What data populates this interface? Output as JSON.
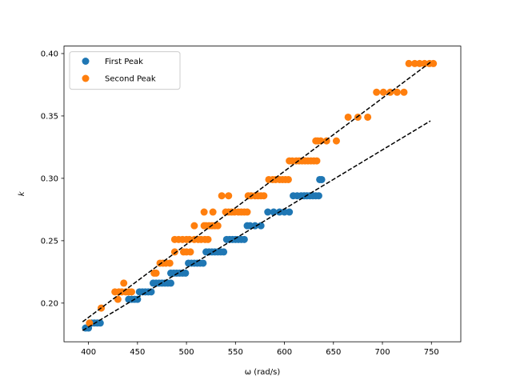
{
  "chart_data": {
    "type": "scatter",
    "title": "",
    "xlabel": "ω (rad/s)",
    "ylabel": "k",
    "xlim": [
      375,
      780
    ],
    "ylim": [
      0.169,
      0.406
    ],
    "xticks": [
      400,
      450,
      500,
      550,
      600,
      650,
      700,
      750
    ],
    "xtick_labels": [
      "400",
      "450",
      "500",
      "550",
      "600",
      "650",
      "700",
      "750"
    ],
    "yticks": [
      0.2,
      0.25,
      0.3,
      0.35,
      0.4
    ],
    "ytick_labels": [
      "0.20",
      "0.25",
      "0.30",
      "0.35",
      "0.40"
    ],
    "grid": false,
    "legend_position": "top-left",
    "series": [
      {
        "name": "First Peak",
        "color": "#1f77b4",
        "points": [
          [
            397,
            0.18
          ],
          [
            400,
            0.18
          ],
          [
            403,
            0.184
          ],
          [
            406,
            0.184
          ],
          [
            409,
            0.184
          ],
          [
            412,
            0.184
          ],
          [
            441,
            0.203
          ],
          [
            444,
            0.203
          ],
          [
            447,
            0.203
          ],
          [
            450,
            0.203
          ],
          [
            452,
            0.209
          ],
          [
            455,
            0.209
          ],
          [
            458,
            0.209
          ],
          [
            461,
            0.209
          ],
          [
            464,
            0.209
          ],
          [
            466,
            0.216
          ],
          [
            469,
            0.216
          ],
          [
            472,
            0.216
          ],
          [
            475,
            0.216
          ],
          [
            478,
            0.216
          ],
          [
            481,
            0.216
          ],
          [
            484,
            0.216
          ],
          [
            484,
            0.224
          ],
          [
            487,
            0.224
          ],
          [
            490,
            0.224
          ],
          [
            493,
            0.224
          ],
          [
            496,
            0.224
          ],
          [
            499,
            0.224
          ],
          [
            502,
            0.232
          ],
          [
            505,
            0.232
          ],
          [
            508,
            0.232
          ],
          [
            511,
            0.232
          ],
          [
            514,
            0.232
          ],
          [
            517,
            0.232
          ],
          [
            520,
            0.241
          ],
          [
            523,
            0.241
          ],
          [
            526,
            0.241
          ],
          [
            529,
            0.241
          ],
          [
            532,
            0.241
          ],
          [
            535,
            0.241
          ],
          [
            538,
            0.241
          ],
          [
            541,
            0.251
          ],
          [
            544,
            0.251
          ],
          [
            547,
            0.251
          ],
          [
            550,
            0.251
          ],
          [
            553,
            0.251
          ],
          [
            556,
            0.251
          ],
          [
            559,
            0.251
          ],
          [
            562,
            0.262
          ],
          [
            565,
            0.262
          ],
          [
            570,
            0.262
          ],
          [
            576,
            0.262
          ],
          [
            583,
            0.273
          ],
          [
            589,
            0.273
          ],
          [
            595,
            0.273
          ],
          [
            600,
            0.273
          ],
          [
            605,
            0.273
          ],
          [
            609,
            0.286
          ],
          [
            613,
            0.286
          ],
          [
            617,
            0.286
          ],
          [
            620,
            0.286
          ],
          [
            623,
            0.286
          ],
          [
            626,
            0.286
          ],
          [
            629,
            0.286
          ],
          [
            632,
            0.286
          ],
          [
            635,
            0.286
          ],
          [
            636,
            0.299
          ],
          [
            638,
            0.299
          ]
        ]
      },
      {
        "name": "Second Peak",
        "color": "#ff7f0e",
        "points": [
          [
            401,
            0.184
          ],
          [
            413,
            0.196
          ],
          [
            427,
            0.209
          ],
          [
            430,
            0.203
          ],
          [
            431,
            0.209
          ],
          [
            434,
            0.209
          ],
          [
            436,
            0.216
          ],
          [
            438,
            0.209
          ],
          [
            441,
            0.209
          ],
          [
            444,
            0.209
          ],
          [
            467,
            0.224
          ],
          [
            469,
            0.224
          ],
          [
            473,
            0.232
          ],
          [
            476,
            0.232
          ],
          [
            479,
            0.232
          ],
          [
            483,
            0.232
          ],
          [
            488,
            0.241
          ],
          [
            488,
            0.251
          ],
          [
            492,
            0.251
          ],
          [
            496,
            0.251
          ],
          [
            500,
            0.251
          ],
          [
            503,
            0.251
          ],
          [
            497,
            0.241
          ],
          [
            500,
            0.241
          ],
          [
            504,
            0.241
          ],
          [
            508,
            0.262
          ],
          [
            508,
            0.251
          ],
          [
            512,
            0.251
          ],
          [
            515,
            0.251
          ],
          [
            519,
            0.251
          ],
          [
            522,
            0.251
          ],
          [
            518,
            0.262
          ],
          [
            520,
            0.262
          ],
          [
            523,
            0.262
          ],
          [
            526,
            0.262
          ],
          [
            529,
            0.262
          ],
          [
            532,
            0.262
          ],
          [
            518,
            0.273
          ],
          [
            527,
            0.273
          ],
          [
            536,
            0.286
          ],
          [
            543,
            0.286
          ],
          [
            540,
            0.273
          ],
          [
            543,
            0.273
          ],
          [
            546,
            0.273
          ],
          [
            549,
            0.273
          ],
          [
            553,
            0.273
          ],
          [
            556,
            0.273
          ],
          [
            559,
            0.273
          ],
          [
            562,
            0.273
          ],
          [
            563,
            0.286
          ],
          [
            566,
            0.286
          ],
          [
            570,
            0.286
          ],
          [
            573,
            0.286
          ],
          [
            576,
            0.286
          ],
          [
            579,
            0.286
          ],
          [
            584,
            0.299
          ],
          [
            588,
            0.299
          ],
          [
            591,
            0.299
          ],
          [
            595,
            0.299
          ],
          [
            598,
            0.299
          ],
          [
            601,
            0.299
          ],
          [
            604,
            0.299
          ],
          [
            605,
            0.314
          ],
          [
            608,
            0.314
          ],
          [
            612,
            0.314
          ],
          [
            615,
            0.314
          ],
          [
            618,
            0.314
          ],
          [
            621,
            0.314
          ],
          [
            624,
            0.314
          ],
          [
            627,
            0.314
          ],
          [
            630,
            0.314
          ],
          [
            633,
            0.314
          ],
          [
            632,
            0.33
          ],
          [
            634,
            0.33
          ],
          [
            637,
            0.33
          ],
          [
            643,
            0.33
          ],
          [
            653,
            0.33
          ],
          [
            665,
            0.349
          ],
          [
            675,
            0.349
          ],
          [
            685,
            0.349
          ],
          [
            694,
            0.369
          ],
          [
            701,
            0.369
          ],
          [
            708,
            0.369
          ],
          [
            715,
            0.369
          ],
          [
            722,
            0.369
          ],
          [
            727,
            0.392
          ],
          [
            733,
            0.392
          ],
          [
            738,
            0.392
          ],
          [
            743,
            0.392
          ],
          [
            748,
            0.392
          ],
          [
            752,
            0.392
          ]
        ]
      }
    ],
    "fit_lines": [
      {
        "color": "#000000",
        "style": "dashed",
        "x": [
          394,
          749
        ],
        "y": [
          0.178,
          0.346
        ]
      },
      {
        "color": "#000000",
        "style": "dashed",
        "x": [
          394,
          749
        ],
        "y": [
          0.185,
          0.393
        ]
      }
    ]
  }
}
